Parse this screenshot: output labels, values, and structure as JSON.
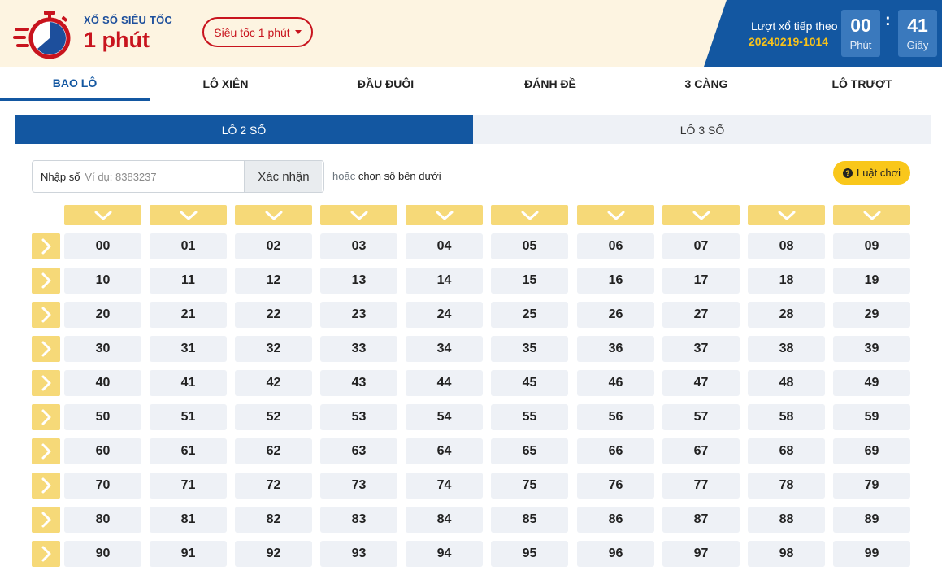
{
  "header": {
    "logo_small": "XỔ SỐ SIÊU TỐC",
    "logo_big": "1 phút",
    "mode_select": "Siêu tốc 1 phút",
    "next_draw_label": "Lượt xổ tiếp theo",
    "next_draw_code": "20240219-1014",
    "minutes": "00",
    "minutes_unit": "Phút",
    "separator": ":",
    "seconds": "41",
    "seconds_unit": "Giây"
  },
  "main_tabs": [
    "BAO LÔ",
    "LÔ XIÊN",
    "ĐẦU ĐUÔI",
    "ĐÁNH ĐỀ",
    "3 CÀNG",
    "LÔ TRƯỢT"
  ],
  "active_main_tab": "BAO LÔ",
  "sub_tabs": [
    "LÔ 2 SỐ",
    "LÔ 3 SỐ"
  ],
  "active_sub_tab": "LÔ 2 SỐ",
  "input": {
    "label": "Nhập số",
    "placeholder": "Ví dụ: 8383237",
    "value": "",
    "confirm_label": "Xác nhận",
    "hint_prefix": "hoặc",
    "hint_text": "chọn số bên dưới"
  },
  "rules_label": "Luật chơi",
  "grid": {
    "rows": [
      [
        "00",
        "01",
        "02",
        "03",
        "04",
        "05",
        "06",
        "07",
        "08",
        "09"
      ],
      [
        "10",
        "11",
        "12",
        "13",
        "14",
        "15",
        "16",
        "17",
        "18",
        "19"
      ],
      [
        "20",
        "21",
        "22",
        "23",
        "24",
        "25",
        "26",
        "27",
        "28",
        "29"
      ],
      [
        "30",
        "31",
        "32",
        "33",
        "34",
        "35",
        "36",
        "37",
        "38",
        "39"
      ],
      [
        "40",
        "41",
        "42",
        "43",
        "44",
        "45",
        "46",
        "47",
        "48",
        "49"
      ],
      [
        "50",
        "51",
        "52",
        "53",
        "54",
        "55",
        "56",
        "57",
        "58",
        "59"
      ],
      [
        "60",
        "61",
        "62",
        "63",
        "64",
        "65",
        "66",
        "67",
        "68",
        "69"
      ],
      [
        "70",
        "71",
        "72",
        "73",
        "74",
        "75",
        "76",
        "77",
        "78",
        "79"
      ],
      [
        "80",
        "81",
        "82",
        "83",
        "84",
        "85",
        "86",
        "87",
        "88",
        "89"
      ],
      [
        "90",
        "91",
        "92",
        "93",
        "94",
        "95",
        "96",
        "97",
        "98",
        "99"
      ]
    ]
  },
  "icons": {
    "logo": "stopwatch-speed-icon",
    "column_select": "chevron-down-icon",
    "row_select": "chevron-right-icon",
    "rules": "question-circle-icon"
  },
  "colors": {
    "brand_red": "#c8141e",
    "brand_blue": "#1357a1",
    "highlight_yellow": "#f6d978",
    "countdown_code": "#f7c21a"
  }
}
